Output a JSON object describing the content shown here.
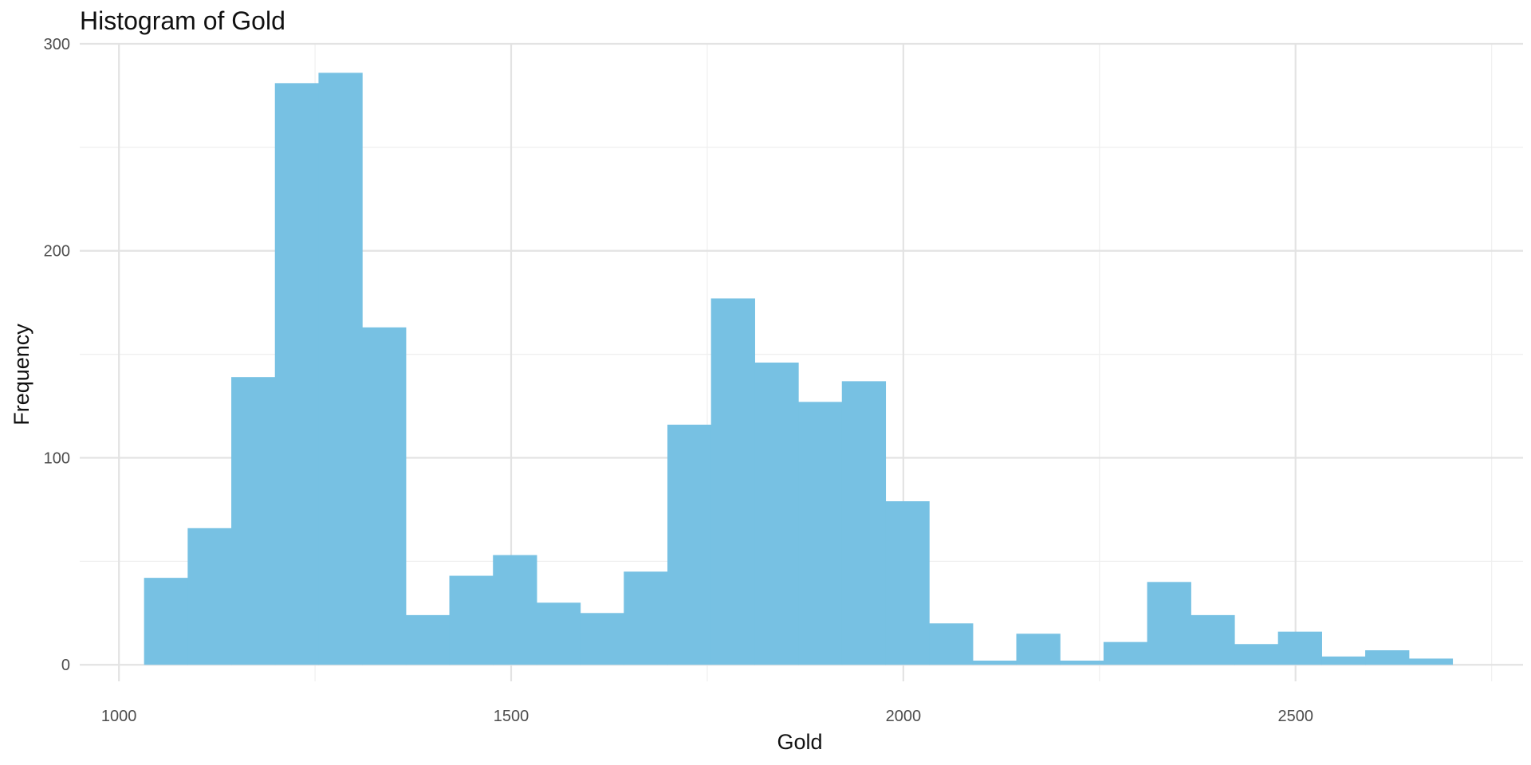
{
  "chart_data": {
    "type": "bar",
    "subtype": "histogram",
    "title": "Histogram of Gold",
    "xlabel": "Gold",
    "ylabel": "Frequency",
    "bin_width": 55.6,
    "bins": [
      {
        "start": 1032.0,
        "end": 1087.6,
        "count": 42
      },
      {
        "start": 1087.6,
        "end": 1143.2,
        "count": 66
      },
      {
        "start": 1143.2,
        "end": 1198.8,
        "count": 139
      },
      {
        "start": 1198.8,
        "end": 1254.4,
        "count": 281
      },
      {
        "start": 1254.4,
        "end": 1310.0,
        "count": 286
      },
      {
        "start": 1310.0,
        "end": 1365.6,
        "count": 163
      },
      {
        "start": 1365.6,
        "end": 1421.2,
        "count": 24
      },
      {
        "start": 1421.2,
        "end": 1476.8,
        "count": 43
      },
      {
        "start": 1476.8,
        "end": 1532.4,
        "count": 53
      },
      {
        "start": 1532.4,
        "end": 1588.0,
        "count": 30
      },
      {
        "start": 1588.0,
        "end": 1643.6,
        "count": 25
      },
      {
        "start": 1643.6,
        "end": 1699.2,
        "count": 45
      },
      {
        "start": 1699.2,
        "end": 1754.8,
        "count": 116
      },
      {
        "start": 1754.8,
        "end": 1810.4,
        "count": 177
      },
      {
        "start": 1810.4,
        "end": 1866.0,
        "count": 146
      },
      {
        "start": 1866.0,
        "end": 1921.6,
        "count": 127
      },
      {
        "start": 1921.6,
        "end": 1977.2,
        "count": 137
      },
      {
        "start": 1977.2,
        "end": 2032.8,
        "count": 79
      },
      {
        "start": 2032.8,
        "end": 2088.4,
        "count": 20
      },
      {
        "start": 2088.4,
        "end": 2144.0,
        "count": 2
      },
      {
        "start": 2144.0,
        "end": 2199.6,
        "count": 15
      },
      {
        "start": 2199.6,
        "end": 2255.2,
        "count": 2
      },
      {
        "start": 2255.2,
        "end": 2310.8,
        "count": 11
      },
      {
        "start": 2310.8,
        "end": 2366.4,
        "count": 40
      },
      {
        "start": 2366.4,
        "end": 2422.0,
        "count": 24
      },
      {
        "start": 2422.0,
        "end": 2477.6,
        "count": 10
      },
      {
        "start": 2477.6,
        "end": 2533.2,
        "count": 16
      },
      {
        "start": 2533.2,
        "end": 2588.8,
        "count": 4
      },
      {
        "start": 2588.8,
        "end": 2644.4,
        "count": 7
      },
      {
        "start": 2644.4,
        "end": 2700.0,
        "count": 3
      }
    ],
    "xlim": [
      950,
      2790
    ],
    "ylim": [
      -8,
      300
    ],
    "x_ticks": [
      1000,
      1500,
      2000,
      2500
    ],
    "x_tick_labels": [
      "1000",
      "1500",
      "2000",
      "2500"
    ],
    "x_minor_ticks": [
      1250,
      1750,
      2250,
      2750
    ],
    "y_ticks": [
      0,
      100,
      200,
      300
    ],
    "y_tick_labels": [
      "0",
      "100",
      "200",
      "300"
    ],
    "y_minor_ticks": [
      50,
      150,
      250
    ],
    "grid": true,
    "legend": "none",
    "colors": {
      "bar": "#77C1E3",
      "background": "#FFFFFF",
      "grid": "#E3E3E3"
    }
  }
}
